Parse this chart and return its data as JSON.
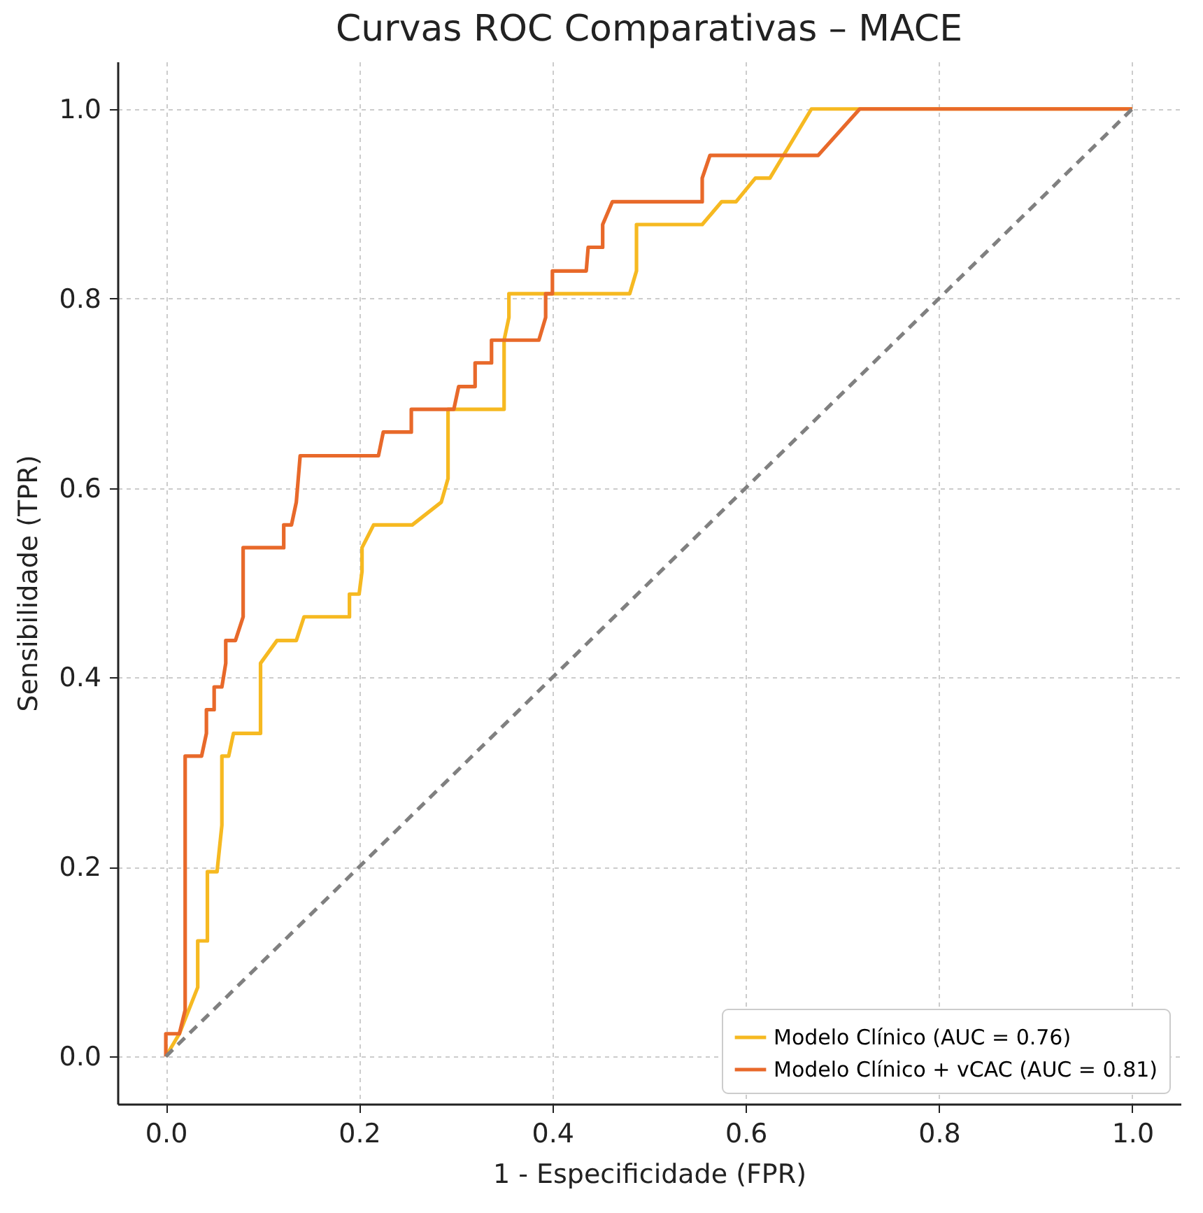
{
  "chart_data": {
    "type": "line",
    "title": "Curvas ROC Comparativas – MACE",
    "xlabel": "1 - Especificidade (FPR)",
    "ylabel": "Sensibilidade (TPR)",
    "xlim": [
      -0.05,
      1.05
    ],
    "ylim": [
      -0.05,
      1.05
    ],
    "xticks": [
      {
        "value": 0,
        "label": "0.0"
      },
      {
        "value": 0.2,
        "label": "0.2"
      },
      {
        "value": 0.4,
        "label": "0.4"
      },
      {
        "value": 0.6,
        "label": "0.6"
      },
      {
        "value": 0.8,
        "label": "0.8"
      },
      {
        "value": 1,
        "label": "1.0"
      }
    ],
    "yticks": [
      {
        "value": 0,
        "label": "0.0"
      },
      {
        "value": 0.2,
        "label": "0.2"
      },
      {
        "value": 0.4,
        "label": "0.4"
      },
      {
        "value": 0.6,
        "label": "0.6"
      },
      {
        "value": 0.8,
        "label": "0.8"
      },
      {
        "value": 1,
        "label": "1.0"
      }
    ],
    "grid": true,
    "legend": "bottom right",
    "line_style": "solid",
    "series": [
      {
        "name": "Modelo Clínico (AUC = 0.76)",
        "color": "#f6b921",
        "x": [
          0,
          0.014,
          0.033,
          0.033,
          0.043,
          0.043,
          0.053,
          0.058,
          0.058,
          0.065,
          0.07,
          0.098,
          0.098,
          0.115,
          0.135,
          0.143,
          0.19,
          0.19,
          0.2,
          0.203,
          0.203,
          0.215,
          0.255,
          0.285,
          0.292,
          0.292,
          0.35,
          0.35,
          0.355,
          0.355,
          0.48,
          0.487,
          0.487,
          0.555,
          0.575,
          0.59,
          0.61,
          0.625,
          0.668,
          1
        ],
        "values": [
          0,
          0.024,
          0.073,
          0.122,
          0.122,
          0.195,
          0.195,
          0.244,
          0.317,
          0.317,
          0.341,
          0.341,
          0.415,
          0.439,
          0.439,
          0.464,
          0.464,
          0.488,
          0.488,
          0.512,
          0.537,
          0.561,
          0.561,
          0.585,
          0.61,
          0.683,
          0.683,
          0.756,
          0.78,
          0.805,
          0.805,
          0.829,
          0.878,
          0.878,
          0.902,
          0.902,
          0.927,
          0.927,
          1,
          1
        ]
      },
      {
        "name": "Modelo Clínico + vCAC (AUC = 0.81)",
        "color": "#e8692a",
        "x": [
          0,
          0,
          0.014,
          0.02,
          0.02,
          0.037,
          0.042,
          0.042,
          0.05,
          0.05,
          0.058,
          0.062,
          0.062,
          0.072,
          0.08,
          0.08,
          0.122,
          0.122,
          0.13,
          0.135,
          0.139,
          0.22,
          0.225,
          0.254,
          0.254,
          0.298,
          0.303,
          0.32,
          0.32,
          0.337,
          0.337,
          0.386,
          0.393,
          0.393,
          0.4,
          0.4,
          0.435,
          0.437,
          0.452,
          0.452,
          0.462,
          0.555,
          0.555,
          0.563,
          0.675,
          0.718,
          1
        ],
        "values": [
          0,
          0.024,
          0.024,
          0.049,
          0.317,
          0.317,
          0.341,
          0.366,
          0.366,
          0.39,
          0.39,
          0.415,
          0.439,
          0.439,
          0.464,
          0.537,
          0.537,
          0.561,
          0.561,
          0.585,
          0.634,
          0.634,
          0.659,
          0.659,
          0.683,
          0.683,
          0.707,
          0.707,
          0.732,
          0.732,
          0.756,
          0.756,
          0.78,
          0.805,
          0.805,
          0.829,
          0.829,
          0.854,
          0.854,
          0.878,
          0.902,
          0.902,
          0.927,
          0.951,
          0.951,
          1,
          1
        ]
      },
      {
        "color": "#808080",
        "line_style": "dashed",
        "x": [
          0,
          1
        ],
        "values": [
          0,
          1
        ]
      }
    ]
  }
}
